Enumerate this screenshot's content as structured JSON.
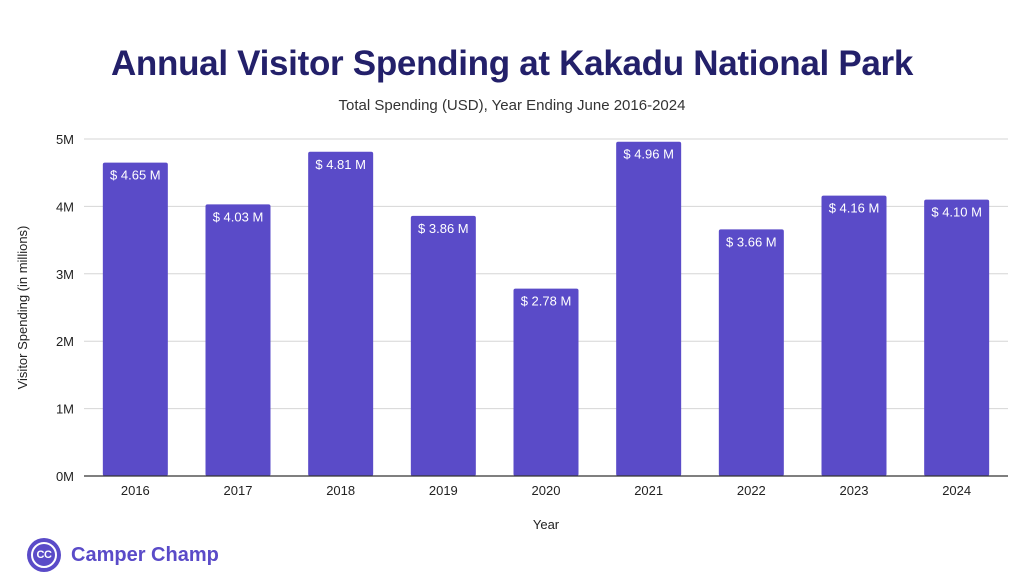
{
  "chart_data": {
    "type": "bar",
    "title": "Annual Visitor Spending at Kakadu National Park",
    "subtitle": "Total Spending (USD), Year Ending June 2016-2024",
    "xlabel": "Year",
    "ylabel": "Visitor Spending (in millions)",
    "categories": [
      "2016",
      "2017",
      "2018",
      "2019",
      "2020",
      "2021",
      "2022",
      "2023",
      "2024"
    ],
    "values": [
      4.65,
      4.03,
      4.81,
      3.86,
      2.78,
      4.96,
      3.66,
      4.16,
      4.1
    ],
    "data_labels": [
      "$ 4.65 M",
      "$ 4.03 M",
      "$ 4.81 M",
      "$ 3.86 M",
      "$ 2.78 M",
      "$ 4.96 M",
      "$ 3.66 M",
      "$ 4.16 M",
      "$ 4.10 M"
    ],
    "ylim": [
      0,
      5
    ],
    "yticks": [
      0,
      1,
      2,
      3,
      4,
      5
    ],
    "ytick_labels": [
      "0M",
      "1M",
      "2M",
      "3M",
      "4M",
      "5M"
    ],
    "grid": true,
    "legend": false,
    "bar_color": "#5a4bc8"
  },
  "brand": {
    "logo_text": "CC",
    "name": "Camper Champ",
    "color": "#5a4bc8"
  },
  "colors": {
    "title": "#23206a",
    "gridline": "#d6d6d6",
    "axis_text": "#222222"
  }
}
